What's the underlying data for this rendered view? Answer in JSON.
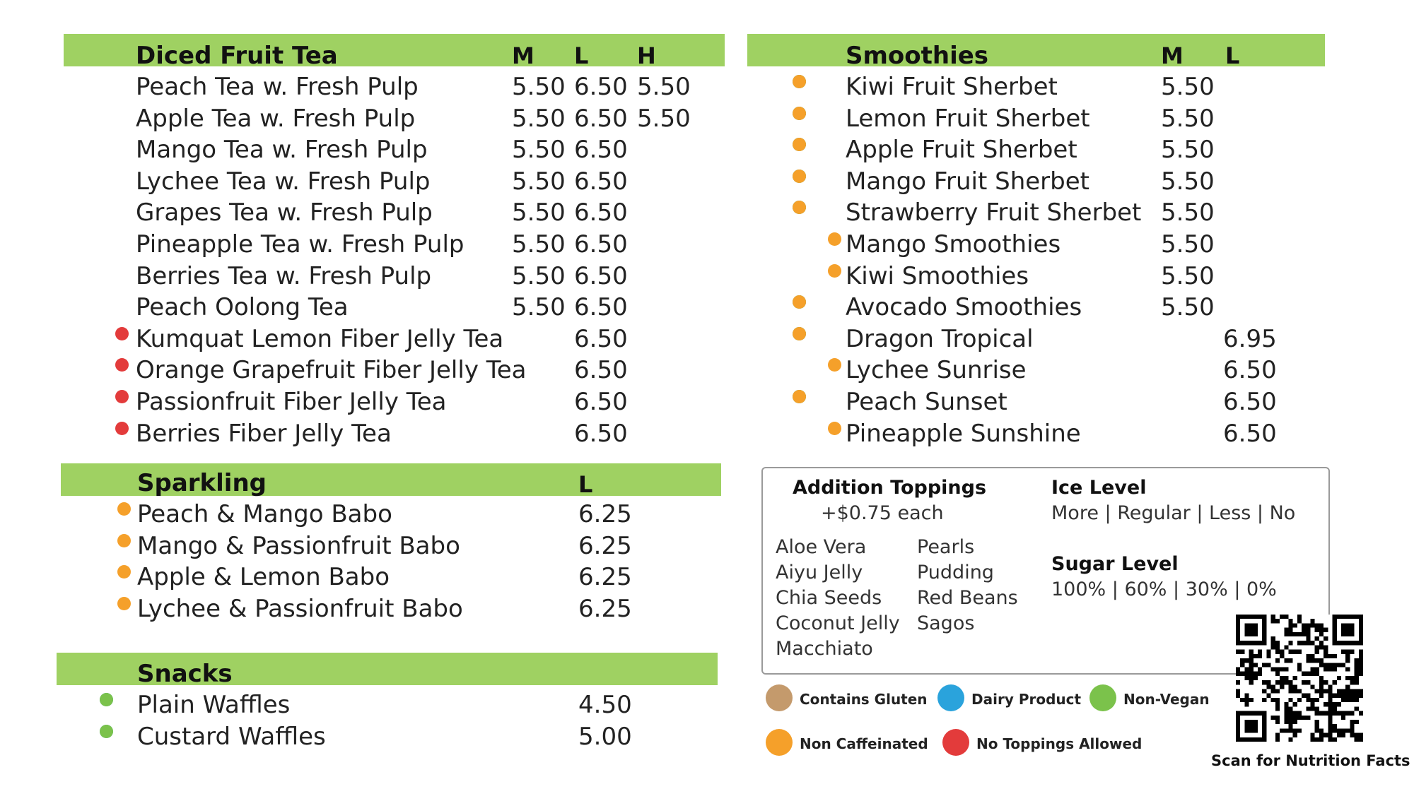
{
  "diced_fruit_tea": {
    "title": "Diced Fruit Tea",
    "columns": [
      "M",
      "L",
      "H"
    ],
    "items": [
      {
        "name": "Peach Tea w. Fresh Pulp",
        "m": "5.50",
        "l": "6.50",
        "h": "5.50",
        "dots": []
      },
      {
        "name": "Apple Tea w. Fresh Pulp",
        "m": "5.50",
        "l": "6.50",
        "h": "5.50",
        "dots": []
      },
      {
        "name": "Mango Tea w. Fresh Pulp",
        "m": "5.50",
        "l": "6.50",
        "h": "",
        "dots": []
      },
      {
        "name": "Lychee Tea w. Fresh Pulp",
        "m": "5.50",
        "l": "6.50",
        "h": "",
        "dots": []
      },
      {
        "name": "Grapes Tea w. Fresh Pulp",
        "m": "5.50",
        "l": "6.50",
        "h": "",
        "dots": []
      },
      {
        "name": "Pineapple Tea w. Fresh Pulp",
        "m": "5.50",
        "l": "6.50",
        "h": "",
        "dots": []
      },
      {
        "name": "Berries Tea w. Fresh Pulp",
        "m": "5.50",
        "l": "6.50",
        "h": "",
        "dots": []
      },
      {
        "name": "Peach Oolong Tea",
        "m": "5.50",
        "l": "6.50",
        "h": "",
        "dots": []
      },
      {
        "name": "Kumquat Lemon Fiber Jelly Tea",
        "m": "",
        "l": "6.50",
        "h": "",
        "dots": [
          "red"
        ]
      },
      {
        "name": "Orange Grapefruit Fiber Jelly Tea",
        "m": "",
        "l": "6.50",
        "h": "",
        "dots": [
          "red"
        ]
      },
      {
        "name": "Passionfruit Fiber Jelly Tea",
        "m": "",
        "l": "6.50",
        "h": "",
        "dots": [
          "red"
        ]
      },
      {
        "name": "Berries Fiber Jelly Tea",
        "m": "",
        "l": "6.50",
        "h": "",
        "dots": [
          "red"
        ]
      }
    ]
  },
  "sparkling": {
    "title": "Sparkling",
    "columns": [
      "L"
    ],
    "items": [
      {
        "name": "Peach & Mango Babo",
        "l": "6.25",
        "dots": [
          "orange"
        ]
      },
      {
        "name": "Mango & Passionfruit Babo",
        "l": "6.25",
        "dots": [
          "orange"
        ]
      },
      {
        "name": "Apple & Lemon Babo",
        "l": "6.25",
        "dots": [
          "orange"
        ]
      },
      {
        "name": "Lychee & Passionfruit Babo",
        "l": "6.25",
        "dots": [
          "orange"
        ]
      }
    ]
  },
  "snacks": {
    "title": "Snacks",
    "items": [
      {
        "name": "Plain Waffles",
        "price": "4.50",
        "dots": [
          "blue",
          "green"
        ]
      },
      {
        "name": "Custard Waffles",
        "price": "5.00",
        "dots": [
          "blue",
          "green"
        ]
      }
    ]
  },
  "smoothies": {
    "title": "Smoothies",
    "columns": [
      "M",
      "L"
    ],
    "items": [
      {
        "name": "Kiwi Fruit Sherbet",
        "m": "5.50",
        "l": "",
        "dots": [
          "blue",
          "green",
          "orange"
        ]
      },
      {
        "name": "Lemon Fruit Sherbet",
        "m": "5.50",
        "l": "",
        "dots": [
          "blue",
          "green",
          "orange"
        ]
      },
      {
        "name": "Apple Fruit Sherbet",
        "m": "5.50",
        "l": "",
        "dots": [
          "blue",
          "green",
          "orange"
        ]
      },
      {
        "name": "Mango Fruit Sherbet",
        "m": "5.50",
        "l": "",
        "dots": [
          "blue",
          "green",
          "orange"
        ]
      },
      {
        "name": "Strawberry Fruit Sherbet",
        "m": "5.50",
        "l": "",
        "dots": [
          "blue",
          "green",
          "orange"
        ]
      },
      {
        "name": "Mango Smoothies",
        "m": "5.50",
        "l": "",
        "dots": [
          "orange"
        ]
      },
      {
        "name": "Kiwi Smoothies",
        "m": "5.50",
        "l": "",
        "dots": [
          "orange"
        ]
      },
      {
        "name": "Avocado Smoothies",
        "m": "5.50",
        "l": "",
        "dots": [
          "blue",
          "green",
          "orange"
        ]
      },
      {
        "name": "Dragon Tropical",
        "m": "",
        "l": "6.95",
        "dots": [
          "blue",
          "green",
          "orange"
        ]
      },
      {
        "name": "Lychee Sunrise",
        "m": "",
        "l": "6.50",
        "dots": [
          "orange"
        ]
      },
      {
        "name": "Peach Sunset",
        "m": "",
        "l": "6.50",
        "dots": [
          "blue",
          "green",
          "orange"
        ]
      },
      {
        "name": "Pineapple Sunshine",
        "m": "",
        "l": "6.50",
        "dots": [
          "orange"
        ]
      }
    ]
  },
  "toppings": {
    "title": "Addition Toppings",
    "price_note": "+$0.75 each",
    "left_list": [
      "Aloe Vera",
      "Aiyu Jelly",
      "Chia Seeds",
      "Coconut Jelly",
      "Macchiato"
    ],
    "right_list": [
      "Pearls",
      "Pudding",
      "Red Beans",
      "Sagos"
    ],
    "ice_title": "Ice Level",
    "ice_options": "More  |  Regular  |  Less  |  No",
    "sugar_title": "Sugar Level",
    "sugar_options": "100%  |  60%  |  30%  |  0%"
  },
  "legend": {
    "items": [
      {
        "label": "Contains Gluten",
        "color": "#c49a6c"
      },
      {
        "label": "Dairy Product",
        "color": "#2aa3dc"
      },
      {
        "label": "Non-Vegan",
        "color": "#7bc24b"
      },
      {
        "label": "Non Caffeinated",
        "color": "#f5a02a"
      },
      {
        "label": "No Toppings Allowed",
        "color": "#e33b3b"
      }
    ]
  },
  "qr": {
    "caption": "Scan for Nutrition Facts"
  },
  "colors": {
    "header_bar": "#9fd162",
    "dot_blue": "#2aa3dc",
    "dot_green": "#7bc24b",
    "dot_orange": "#f5a02a",
    "dot_red": "#e33b3b",
    "dot_brown": "#c49a6c"
  }
}
